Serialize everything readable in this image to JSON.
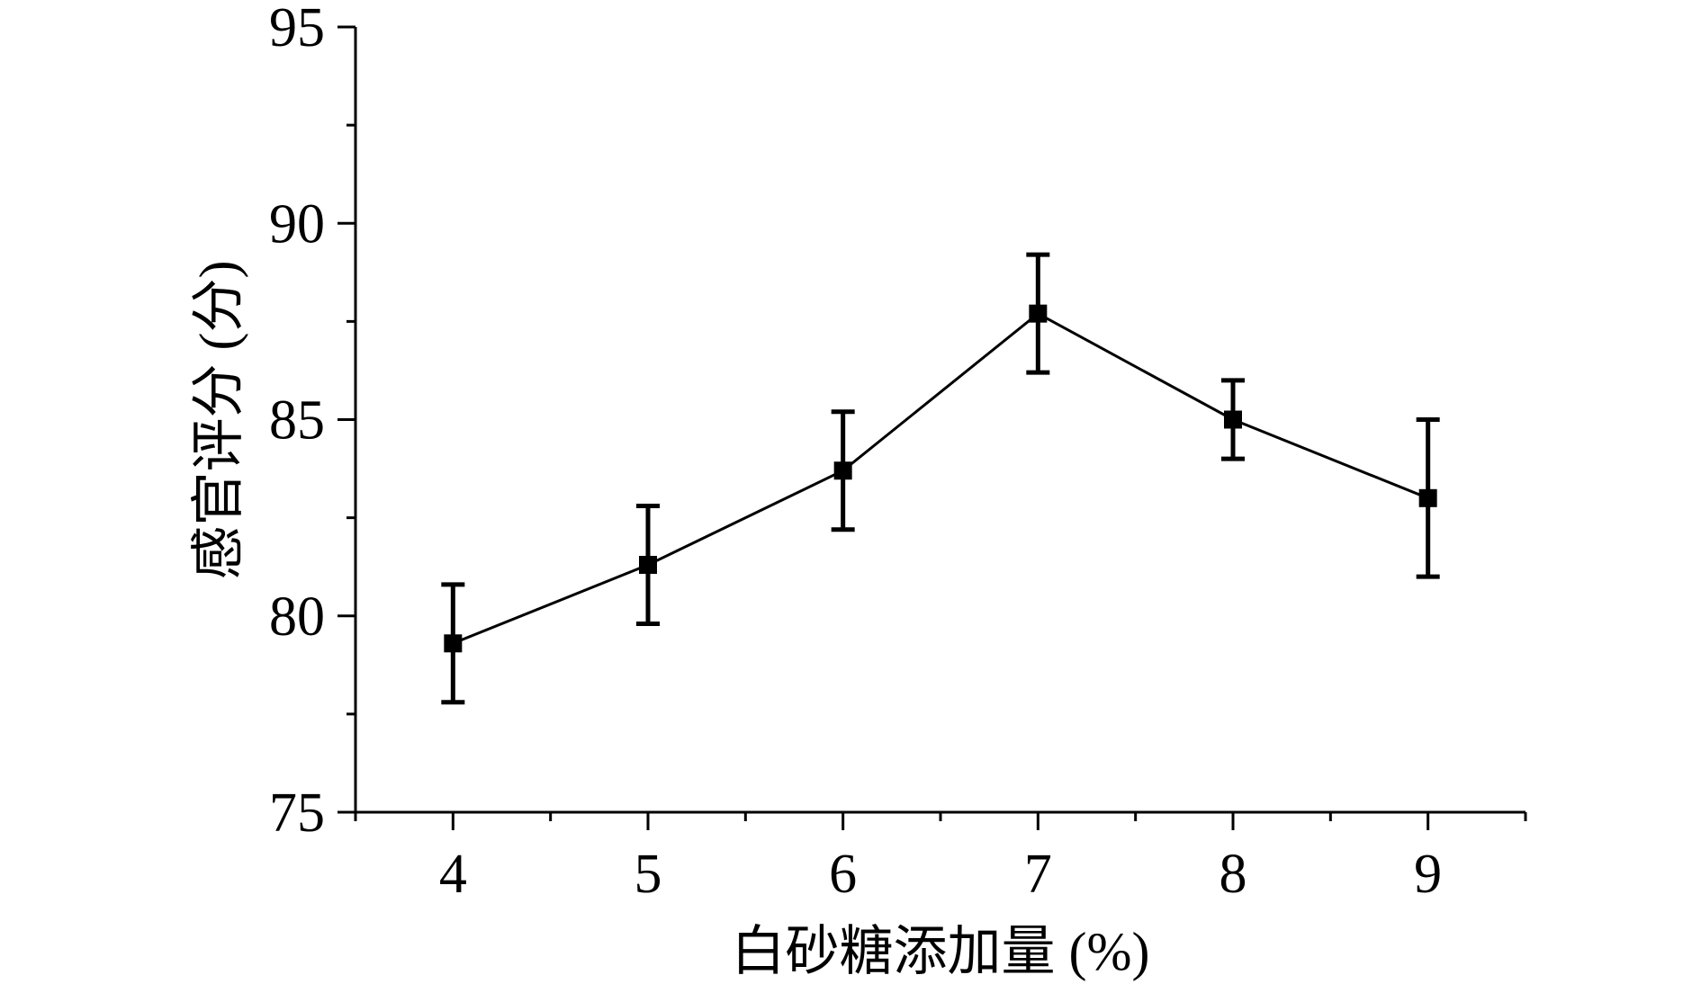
{
  "chart_data": {
    "type": "line",
    "xlabel": "白砂糖添加量 (%)",
    "ylabel": "感官评分 (分)",
    "xlim": [
      3.5,
      9.5
    ],
    "ylim": [
      75,
      95
    ],
    "x_ticks": [
      4,
      5,
      6,
      7,
      8,
      9
    ],
    "y_ticks": [
      75,
      80,
      85,
      90,
      95
    ],
    "grid": false,
    "series": [
      {
        "x": [
          4,
          5,
          6,
          7,
          8,
          9
        ],
        "y": [
          79.3,
          81.3,
          83.7,
          87.7,
          85.0,
          83.0
        ],
        "error": [
          1.5,
          1.5,
          1.5,
          1.5,
          1.0,
          2.0
        ],
        "marker": "square",
        "color": "#000000"
      }
    ]
  }
}
